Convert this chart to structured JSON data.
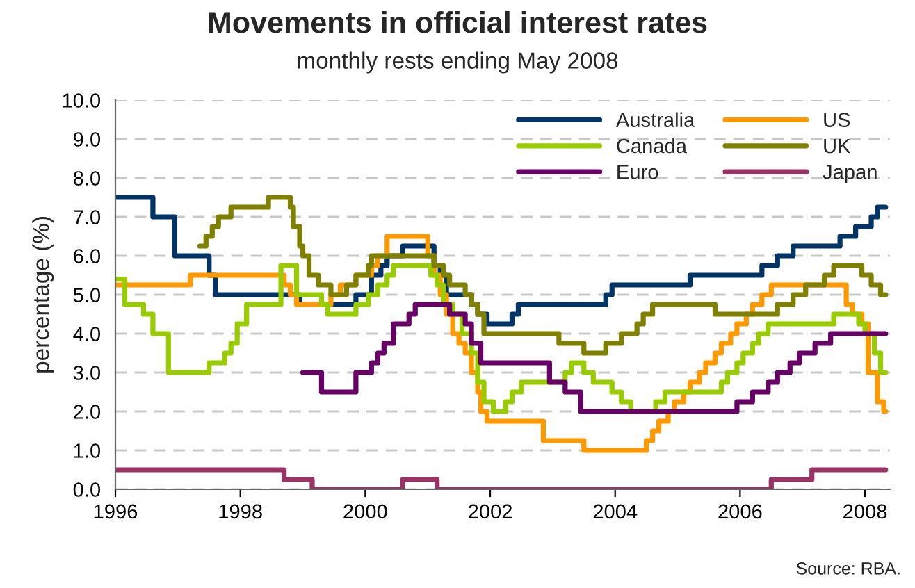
{
  "chart_data": {
    "type": "step",
    "title": "Movements in official interest rates",
    "subtitle": "monthly rests ending May 2008",
    "ylabel": "percentage (%)",
    "annotations": [
      "Source: RBA."
    ],
    "xlim": [
      1996,
      2008.4
    ],
    "xticks": [
      1996,
      1998,
      2000,
      2002,
      2004,
      2006,
      2008
    ],
    "ylim": [
      0,
      10
    ],
    "yticks": [
      {
        "value": 0,
        "label": "0.0"
      },
      {
        "value": 1,
        "label": "1.0"
      },
      {
        "value": 2,
        "label": "2.0"
      },
      {
        "value": 3,
        "label": "3.0"
      },
      {
        "value": 4,
        "label": "4.0"
      },
      {
        "value": 5,
        "label": "5.0"
      },
      {
        "value": 6,
        "label": "6.0"
      },
      {
        "value": 7,
        "label": "7.0"
      },
      {
        "value": 8,
        "label": "8.0"
      },
      {
        "value": 9,
        "label": "9.0"
      },
      {
        "value": 10,
        "label": "10.0"
      }
    ],
    "grid": "y",
    "legend": "top right",
    "marker": "none",
    "line_style": "solid",
    "series": [
      {
        "name": "Australia",
        "color": "#003366",
        "x": [
          1996,
          1996.6,
          1996.95,
          1997.5,
          1997.6,
          1998.95,
          1999.85,
          2000.1,
          2000.25,
          2000.35,
          2000.6,
          2001.1,
          2001.2,
          2001.3,
          2001.7,
          2001.8,
          2001.95,
          2002.35,
          2002.45,
          2003.85,
          2003.95,
          2005.2,
          2006.35,
          2006.6,
          2006.85,
          2007.6,
          2007.85,
          2008.1,
          2008.2,
          2008.33
        ],
        "values": [
          7.5,
          7.0,
          6.0,
          5.5,
          5.0,
          4.75,
          5.0,
          5.5,
          5.75,
          6.0,
          6.25,
          5.75,
          5.5,
          5.0,
          4.75,
          4.5,
          4.25,
          4.5,
          4.75,
          5.0,
          5.25,
          5.5,
          5.75,
          6.0,
          6.25,
          6.5,
          6.75,
          7.0,
          7.25,
          7.25
        ]
      },
      {
        "name": "US",
        "color": "#ff9900",
        "x": [
          1996,
          1997.2,
          1998.7,
          1998.8,
          1998.9,
          1999.45,
          1999.6,
          1999.85,
          2000.1,
          2000.2,
          2000.35,
          2001.0,
          2001.1,
          2001.2,
          2001.3,
          2001.4,
          2001.5,
          2001.6,
          2001.7,
          2001.8,
          2001.85,
          2001.95,
          2002.85,
          2003.5,
          2004.5,
          2004.6,
          2004.7,
          2004.85,
          2004.95,
          2005.1,
          2005.2,
          2005.35,
          2005.45,
          2005.6,
          2005.7,
          2005.85,
          2005.95,
          2006.1,
          2006.2,
          2006.35,
          2006.5,
          2007.7,
          2007.8,
          2007.95,
          2008.05,
          2008.2,
          2008.3,
          2008.33
        ],
        "values": [
          5.25,
          5.5,
          5.25,
          5.0,
          4.75,
          5.0,
          5.25,
          5.5,
          5.75,
          6.0,
          6.5,
          6.0,
          5.5,
          5.0,
          4.5,
          4.0,
          3.75,
          3.5,
          3.0,
          2.5,
          2.0,
          1.75,
          1.25,
          1.0,
          1.25,
          1.5,
          1.75,
          2.0,
          2.25,
          2.5,
          2.75,
          3.0,
          3.25,
          3.5,
          3.75,
          4.0,
          4.25,
          4.5,
          4.75,
          5.0,
          5.25,
          4.75,
          4.5,
          4.25,
          3.0,
          2.25,
          2.0,
          2.0
        ]
      },
      {
        "name": "Canada",
        "color": "#99cc00",
        "x": [
          1996,
          1996.15,
          1996.45,
          1996.6,
          1996.85,
          1997.5,
          1997.75,
          1997.85,
          1997.95,
          1998.1,
          1998.65,
          1998.9,
          1999.3,
          1999.4,
          1999.85,
          2000.05,
          2000.2,
          2000.35,
          2000.45,
          2001.05,
          2001.15,
          2001.25,
          2001.4,
          2001.55,
          2001.7,
          2001.8,
          2001.9,
          2002.05,
          2002.25,
          2002.35,
          2002.5,
          2003.2,
          2003.3,
          2003.5,
          2003.65,
          2003.95,
          2004.1,
          2004.25,
          2004.65,
          2004.8,
          2005.7,
          2005.8,
          2005.95,
          2006.05,
          2006.2,
          2006.3,
          2006.45,
          2007.5,
          2007.9,
          2008.0,
          2008.15,
          2008.25,
          2008.33
        ],
        "values": [
          5.4,
          4.75,
          4.5,
          4.0,
          3.0,
          3.25,
          3.5,
          3.75,
          4.25,
          4.75,
          5.75,
          5.0,
          4.75,
          4.5,
          4.75,
          5.0,
          5.25,
          5.5,
          5.75,
          5.5,
          5.25,
          4.75,
          4.5,
          4.0,
          3.5,
          2.75,
          2.25,
          2.0,
          2.25,
          2.5,
          2.75,
          3.0,
          3.25,
          3.0,
          2.75,
          2.5,
          2.25,
          2.0,
          2.25,
          2.5,
          2.75,
          3.0,
          3.25,
          3.5,
          3.75,
          4.0,
          4.25,
          4.5,
          4.25,
          4.0,
          3.5,
          3.0,
          3.0
        ]
      },
      {
        "name": "UK",
        "color": "#808000",
        "x": [
          1997.35,
          1997.45,
          1997.55,
          1997.65,
          1997.85,
          1998.45,
          1998.8,
          1998.85,
          1998.95,
          1999.0,
          1999.1,
          1999.25,
          1999.45,
          1999.7,
          1999.85,
          2000.05,
          2000.1,
          2001.1,
          2001.25,
          2001.35,
          2001.6,
          2001.7,
          2001.8,
          2001.9,
          2003.1,
          2003.5,
          2003.85,
          2004.1,
          2004.35,
          2004.45,
          2004.6,
          2005.6,
          2006.6,
          2006.85,
          2007.05,
          2007.35,
          2007.5,
          2007.95,
          2008.1,
          2008.25,
          2008.33
        ],
        "values": [
          6.25,
          6.5,
          6.75,
          7.0,
          7.25,
          7.5,
          7.25,
          6.75,
          6.25,
          6.0,
          5.5,
          5.25,
          5.0,
          5.25,
          5.5,
          5.75,
          6.0,
          5.75,
          5.5,
          5.25,
          5.0,
          4.75,
          4.5,
          4.0,
          3.75,
          3.5,
          3.75,
          4.0,
          4.25,
          4.5,
          4.75,
          4.5,
          4.75,
          5.0,
          5.25,
          5.5,
          5.75,
          5.5,
          5.25,
          5.0,
          5.0
        ]
      },
      {
        "name": "Euro",
        "color": "#660066",
        "x": [
          1999.0,
          1999.3,
          1999.85,
          2000.1,
          2000.2,
          2000.3,
          2000.45,
          2000.7,
          2000.8,
          2001.35,
          2001.6,
          2001.7,
          2001.85,
          2002.95,
          2003.2,
          2003.45,
          2005.95,
          2006.2,
          2006.45,
          2006.6,
          2006.8,
          2006.95,
          2007.2,
          2007.45,
          2008.33
        ],
        "values": [
          3.0,
          2.5,
          3.0,
          3.25,
          3.5,
          3.75,
          4.25,
          4.5,
          4.75,
          4.5,
          4.25,
          3.75,
          3.25,
          2.75,
          2.5,
          2.0,
          2.25,
          2.5,
          2.75,
          3.0,
          3.25,
          3.5,
          3.75,
          4.0,
          4.0
        ]
      },
      {
        "name": "Japan",
        "color": "#993366",
        "x": [
          1996,
          1998.7,
          1999.15,
          2000.6,
          2001.15,
          2006.5,
          2007.15,
          2008.33
        ],
        "values": [
          0.5,
          0.25,
          0.0,
          0.25,
          0.0,
          0.25,
          0.5,
          0.5
        ]
      }
    ]
  }
}
